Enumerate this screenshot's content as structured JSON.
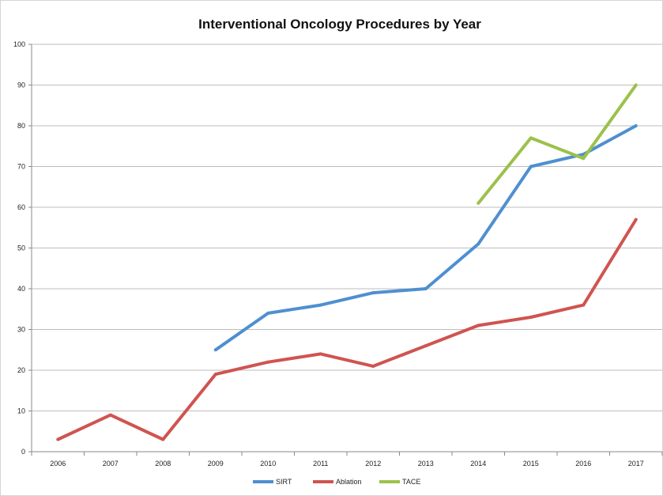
{
  "chart_data": {
    "type": "line",
    "title": "Interventional Oncology Procedures by Year",
    "xlabel": "",
    "ylabel": "",
    "categories": [
      "2006",
      "2007",
      "2008",
      "2009",
      "2010",
      "2011",
      "2012",
      "2013",
      "2014",
      "2015",
      "2016",
      "2017"
    ],
    "ylim": [
      0,
      100
    ],
    "yticks": [
      0,
      10,
      20,
      30,
      40,
      50,
      60,
      70,
      80,
      90,
      100
    ],
    "grid": "horizontal",
    "legend_position": "bottom",
    "series": [
      {
        "name": "SIRT",
        "color": "#4f8fd0",
        "values": [
          null,
          null,
          null,
          25,
          34,
          36,
          39,
          40,
          51,
          70,
          73,
          80
        ]
      },
      {
        "name": "Ablation",
        "color": "#cf5450",
        "values": [
          3,
          9,
          3,
          19,
          22,
          24,
          21,
          26,
          31,
          33,
          36,
          57
        ]
      },
      {
        "name": "TACE",
        "color": "#9cc14b",
        "values": [
          null,
          null,
          null,
          null,
          null,
          null,
          null,
          null,
          61,
          77,
          72,
          90
        ]
      }
    ]
  }
}
